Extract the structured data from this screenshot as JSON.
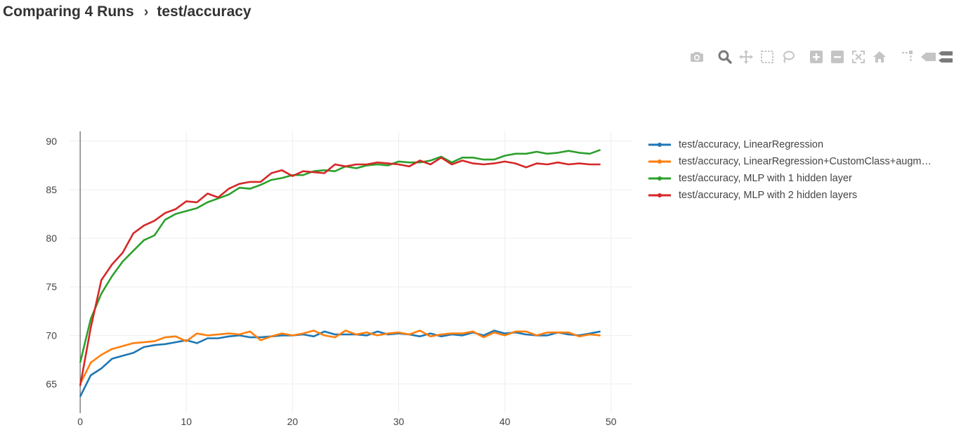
{
  "header": {
    "title": "Comparing 4 Runs",
    "separator": "›",
    "metric": "test/accuracy"
  },
  "toolbar": {
    "buttons": [
      {
        "name": "camera-icon",
        "label": "Download plot as a png"
      },
      {
        "name": "zoom-icon",
        "label": "Zoom"
      },
      {
        "name": "pan-icon",
        "label": "Pan"
      },
      {
        "name": "box-select-icon",
        "label": "Box Select"
      },
      {
        "name": "lasso-select-icon",
        "label": "Lasso Select"
      },
      {
        "name": "zoom-in-icon",
        "label": "Zoom in"
      },
      {
        "name": "zoom-out-icon",
        "label": "Zoom out"
      },
      {
        "name": "autoscale-icon",
        "label": "Autoscale"
      },
      {
        "name": "reset-axes-icon",
        "label": "Reset axes"
      },
      {
        "name": "spike-lines-icon",
        "label": "Toggle Spike Lines"
      },
      {
        "name": "hover-closest-icon",
        "label": "Show closest data on hover"
      },
      {
        "name": "hover-compare-icon",
        "label": "Compare data on hover"
      }
    ],
    "active": "zoom-icon"
  },
  "chart_data": {
    "type": "line",
    "title": "",
    "xlabel": "",
    "ylabel": "",
    "xlim": [
      -1,
      52
    ],
    "ylim": [
      62,
      91
    ],
    "xticks": [
      0,
      10,
      20,
      30,
      40,
      50
    ],
    "yticks": [
      65,
      70,
      75,
      80,
      85,
      90
    ],
    "grid": true,
    "legend_position": "right",
    "x": [
      0,
      1,
      2,
      3,
      4,
      5,
      6,
      7,
      8,
      9,
      10,
      11,
      12,
      13,
      14,
      15,
      16,
      17,
      18,
      19,
      20,
      21,
      22,
      23,
      24,
      25,
      26,
      27,
      28,
      29,
      30,
      31,
      32,
      33,
      34,
      35,
      36,
      37,
      38,
      39,
      40,
      41,
      42,
      43,
      44,
      45,
      46,
      47,
      48,
      49
    ],
    "series": [
      {
        "name": "test/accuracy, LinearRegression",
        "color": "#1f77b4",
        "values": [
          63.7,
          65.9,
          66.6,
          67.6,
          67.9,
          68.2,
          68.8,
          69.0,
          69.1,
          69.3,
          69.5,
          69.2,
          69.7,
          69.7,
          69.9,
          70.0,
          69.8,
          69.8,
          69.9,
          70.0,
          70.0,
          70.1,
          69.9,
          70.4,
          70.1,
          70.1,
          70.1,
          70.0,
          70.4,
          70.1,
          70.2,
          70.1,
          69.9,
          70.2,
          69.9,
          70.1,
          70.0,
          70.3,
          70.0,
          70.5,
          70.2,
          70.3,
          70.1,
          70.0,
          70.0,
          70.3,
          70.1,
          70.0,
          70.2,
          70.4
        ]
      },
      {
        "name": "test/accuracy, LinearRegression+CustomClass+augm…",
        "color": "#ff7f0e",
        "values": [
          65.0,
          67.2,
          68.0,
          68.6,
          68.9,
          69.2,
          69.3,
          69.4,
          69.8,
          69.9,
          69.4,
          70.2,
          70.0,
          70.1,
          70.2,
          70.1,
          70.4,
          69.5,
          69.9,
          70.2,
          70.0,
          70.2,
          70.5,
          70.0,
          69.8,
          70.5,
          70.1,
          70.3,
          70.0,
          70.2,
          70.3,
          70.1,
          70.5,
          69.9,
          70.1,
          70.2,
          70.2,
          70.4,
          69.8,
          70.3,
          70.0,
          70.4,
          70.4,
          70.0,
          70.3,
          70.3,
          70.3,
          69.9,
          70.1,
          70.0
        ]
      },
      {
        "name": "test/accuracy, MLP with 1 hidden layer",
        "color": "#2ca02c",
        "values": [
          67.2,
          71.7,
          74.3,
          76.1,
          77.6,
          78.7,
          79.8,
          80.3,
          81.9,
          82.5,
          82.8,
          83.1,
          83.7,
          84.1,
          84.5,
          85.2,
          85.1,
          85.5,
          86.0,
          86.2,
          86.5,
          86.5,
          86.9,
          87.0,
          86.9,
          87.4,
          87.2,
          87.5,
          87.6,
          87.5,
          87.9,
          87.8,
          87.8,
          88.0,
          88.4,
          87.8,
          88.3,
          88.3,
          88.1,
          88.1,
          88.5,
          88.7,
          88.7,
          88.9,
          88.7,
          88.8,
          89.0,
          88.8,
          88.7,
          89.1
        ]
      },
      {
        "name": "test/accuracy, MLP with 2 hidden layers",
        "color": "#d62728",
        "values": [
          64.8,
          70.8,
          75.7,
          77.3,
          78.5,
          80.5,
          81.3,
          81.8,
          82.6,
          83.0,
          83.8,
          83.7,
          84.6,
          84.2,
          85.1,
          85.6,
          85.8,
          85.8,
          86.7,
          87.0,
          86.4,
          86.9,
          86.8,
          86.7,
          87.6,
          87.4,
          87.6,
          87.6,
          87.8,
          87.7,
          87.6,
          87.4,
          88.0,
          87.6,
          88.3,
          87.6,
          88.0,
          87.7,
          87.6,
          87.7,
          87.9,
          87.7,
          87.3,
          87.7,
          87.6,
          87.8,
          87.6,
          87.7,
          87.6,
          87.6
        ]
      }
    ]
  }
}
